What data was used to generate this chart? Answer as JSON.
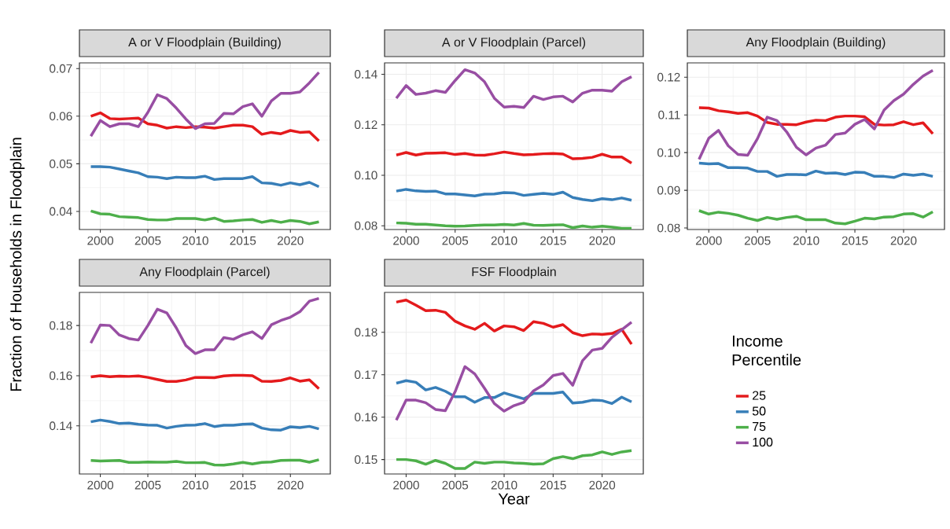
{
  "chart_data": [
    {
      "type": "line",
      "title": "A or V Floodplain (Building)",
      "x": [
        1999,
        2000,
        2001,
        2002,
        2003,
        2004,
        2005,
        2006,
        2007,
        2008,
        2009,
        2010,
        2011,
        2012,
        2013,
        2014,
        2015,
        2016,
        2017,
        2018,
        2019,
        2020,
        2021,
        2022,
        2023
      ],
      "xlim": [
        1997.8,
        2024.2
      ],
      "ylim": [
        0.0362,
        0.0712
      ],
      "xticks": [
        2000,
        2005,
        2010,
        2015,
        2020
      ],
      "yticks": [
        0.04,
        0.05,
        0.06,
        0.07
      ],
      "grid": true,
      "series": [
        {
          "color": "#e41a1c",
          "values": [
            0.06,
            0.0607,
            0.0595,
            0.0594,
            0.0595,
            0.0596,
            0.0584,
            0.0581,
            0.0575,
            0.0578,
            0.0576,
            0.0578,
            0.0577,
            0.0575,
            0.0578,
            0.0581,
            0.0581,
            0.0578,
            0.0562,
            0.0566,
            0.0563,
            0.057,
            0.0566,
            0.0567,
            0.0548
          ]
        },
        {
          "color": "#377eb8",
          "values": [
            0.0494,
            0.0494,
            0.0493,
            0.0489,
            0.0485,
            0.0481,
            0.0473,
            0.0472,
            0.0469,
            0.0472,
            0.0471,
            0.0471,
            0.0474,
            0.0467,
            0.0469,
            0.0469,
            0.0469,
            0.0473,
            0.046,
            0.0459,
            0.0455,
            0.046,
            0.0456,
            0.0461,
            0.0452
          ]
        },
        {
          "color": "#4daf4a",
          "values": [
            0.0401,
            0.0395,
            0.0394,
            0.0389,
            0.0388,
            0.0387,
            0.0383,
            0.0382,
            0.0382,
            0.0385,
            0.0385,
            0.0385,
            0.0382,
            0.0386,
            0.0379,
            0.038,
            0.0382,
            0.0383,
            0.0377,
            0.0381,
            0.0377,
            0.0381,
            0.0379,
            0.0374,
            0.0378
          ]
        },
        {
          "color": "#984ea3",
          "values": [
            0.0558,
            0.0591,
            0.0578,
            0.0584,
            0.0584,
            0.0578,
            0.0608,
            0.0645,
            0.0637,
            0.0617,
            0.0594,
            0.0574,
            0.0584,
            0.0585,
            0.0606,
            0.0605,
            0.062,
            0.0626,
            0.06,
            0.0632,
            0.0648,
            0.0648,
            0.0651,
            0.067,
            0.0692
          ]
        }
      ]
    },
    {
      "type": "line",
      "title": "A or V Floodplain (Parcel)",
      "x": [
        1999,
        2000,
        2001,
        2002,
        2003,
        2004,
        2005,
        2006,
        2007,
        2008,
        2009,
        2010,
        2011,
        2012,
        2013,
        2014,
        2015,
        2016,
        2017,
        2018,
        2019,
        2020,
        2021,
        2022,
        2023
      ],
      "xlim": [
        1997.8,
        2024.2
      ],
      "ylim": [
        0.0785,
        0.1445
      ],
      "xticks": [
        2000,
        2005,
        2010,
        2015,
        2020
      ],
      "yticks": [
        0.08,
        {
          "value": 0.1,
          "label": "0.10"
        },
        0.12,
        0.14
      ],
      "grid": true,
      "series": [
        {
          "color": "#e41a1c",
          "values": [
            0.108,
            0.109,
            0.108,
            0.1087,
            0.1088,
            0.1089,
            0.1082,
            0.1086,
            0.108,
            0.1079,
            0.1085,
            0.1092,
            0.1086,
            0.1081,
            0.1082,
            0.1085,
            0.1086,
            0.1084,
            0.1065,
            0.1067,
            0.1071,
            0.1083,
            0.1072,
            0.1072,
            0.1048
          ]
        },
        {
          "color": "#377eb8",
          "values": [
            0.0937,
            0.0944,
            0.0938,
            0.0936,
            0.0937,
            0.0926,
            0.0926,
            0.0922,
            0.0918,
            0.0925,
            0.0926,
            0.0931,
            0.093,
            0.092,
            0.0924,
            0.0928,
            0.0924,
            0.0933,
            0.0912,
            0.0904,
            0.0899,
            0.0907,
            0.0903,
            0.091,
            0.0901
          ]
        },
        {
          "color": "#4daf4a",
          "values": [
            0.0811,
            0.081,
            0.0806,
            0.0806,
            0.0803,
            0.08,
            0.0798,
            0.0799,
            0.0801,
            0.0803,
            0.0803,
            0.0805,
            0.0803,
            0.0809,
            0.0802,
            0.0801,
            0.0803,
            0.0804,
            0.0792,
            0.0799,
            0.0794,
            0.0798,
            0.0794,
            0.079,
            0.079
          ]
        },
        {
          "color": "#984ea3",
          "values": [
            0.1305,
            0.1355,
            0.132,
            0.1325,
            0.1335,
            0.1328,
            0.1375,
            0.1418,
            0.1405,
            0.137,
            0.1305,
            0.127,
            0.1273,
            0.1268,
            0.1313,
            0.13,
            0.131,
            0.1313,
            0.129,
            0.1325,
            0.1337,
            0.1337,
            0.1333,
            0.137,
            0.139
          ]
        }
      ]
    },
    {
      "type": "line",
      "title": "Any Floodplain (Building)",
      "x": [
        1999,
        2000,
        2001,
        2002,
        2003,
        2004,
        2005,
        2006,
        2007,
        2008,
        2009,
        2010,
        2011,
        2012,
        2013,
        2014,
        2015,
        2016,
        2017,
        2018,
        2019,
        2020,
        2021,
        2022,
        2023
      ],
      "xlim": [
        1997.8,
        2024.2
      ],
      "ylim": [
        0.0796,
        0.1238
      ],
      "xticks": [
        2000,
        2005,
        2010,
        2015,
        2020
      ],
      "yticks": [
        0.08,
        0.09,
        {
          "value": 0.1,
          "label": "0.10"
        },
        0.11,
        0.12
      ],
      "grid": true,
      "series": [
        {
          "color": "#e41a1c",
          "values": [
            0.1119,
            0.1118,
            0.1111,
            0.1108,
            0.1104,
            0.1106,
            0.1097,
            0.108,
            0.1075,
            0.1075,
            0.1074,
            0.1081,
            0.1086,
            0.1085,
            0.1094,
            0.1097,
            0.1097,
            0.1095,
            0.1075,
            0.1073,
            0.1074,
            0.1082,
            0.1074,
            0.1079,
            0.105
          ]
        },
        {
          "color": "#377eb8",
          "values": [
            0.0972,
            0.097,
            0.0971,
            0.096,
            0.096,
            0.0959,
            0.095,
            0.095,
            0.0937,
            0.0942,
            0.0942,
            0.0941,
            0.0951,
            0.0945,
            0.0946,
            0.0942,
            0.0948,
            0.0947,
            0.0937,
            0.0937,
            0.0934,
            0.0943,
            0.094,
            0.0943,
            0.0937
          ]
        },
        {
          "color": "#4daf4a",
          "values": [
            0.0846,
            0.0837,
            0.0842,
            0.0839,
            0.0834,
            0.0826,
            0.082,
            0.0828,
            0.0823,
            0.0828,
            0.0831,
            0.0822,
            0.0822,
            0.0822,
            0.0813,
            0.0811,
            0.0818,
            0.0826,
            0.0824,
            0.0829,
            0.083,
            0.0837,
            0.0838,
            0.0829,
            0.0843
          ]
        },
        {
          "color": "#984ea3",
          "values": [
            0.0982,
            0.1038,
            0.1059,
            0.1018,
            0.0995,
            0.0993,
            0.1037,
            0.1094,
            0.1085,
            0.1055,
            0.1014,
            0.0994,
            0.1012,
            0.102,
            0.1048,
            0.1052,
            0.1075,
            0.1088,
            0.1063,
            0.1113,
            0.1138,
            0.1155,
            0.1181,
            0.1203,
            0.1218
          ]
        }
      ]
    },
    {
      "type": "line",
      "title": "Any Floodplain (Parcel)",
      "ylabel": "Fraction of Households in Floodplain",
      "x": [
        1999,
        2000,
        2001,
        2002,
        2003,
        2004,
        2005,
        2006,
        2007,
        2008,
        2009,
        2010,
        2011,
        2012,
        2013,
        2014,
        2015,
        2016,
        2017,
        2018,
        2019,
        2020,
        2021,
        2022,
        2023
      ],
      "xlim": [
        1997.8,
        2024.2
      ],
      "ylim": [
        0.1208,
        0.1932
      ],
      "xticks": [
        2000,
        2005,
        2010,
        2015,
        2020
      ],
      "yticks": [
        0.14,
        0.16,
        0.18
      ],
      "grid": true,
      "series": [
        {
          "color": "#e41a1c",
          "values": [
            0.1595,
            0.16,
            0.1596,
            0.1598,
            0.1597,
            0.1599,
            0.1593,
            0.1585,
            0.1577,
            0.1577,
            0.1583,
            0.1593,
            0.1593,
            0.1592,
            0.1599,
            0.1601,
            0.1601,
            0.16,
            0.1578,
            0.1577,
            0.1581,
            0.1591,
            0.1578,
            0.1583,
            0.1548
          ]
        },
        {
          "color": "#377eb8",
          "values": [
            0.1416,
            0.1423,
            0.1417,
            0.1409,
            0.1411,
            0.1406,
            0.1403,
            0.1402,
            0.1391,
            0.1398,
            0.1402,
            0.1403,
            0.1409,
            0.1397,
            0.1402,
            0.1402,
            0.1406,
            0.1408,
            0.1391,
            0.1384,
            0.1383,
            0.1396,
            0.1393,
            0.1398,
            0.1388
          ]
        },
        {
          "color": "#4daf4a",
          "values": [
            0.1262,
            0.126,
            0.1261,
            0.1262,
            0.1254,
            0.1254,
            0.1256,
            0.1255,
            0.1255,
            0.1258,
            0.1253,
            0.1253,
            0.1254,
            0.1244,
            0.1243,
            0.1248,
            0.1254,
            0.1248,
            0.1254,
            0.1256,
            0.1262,
            0.1263,
            0.1263,
            0.1255,
            0.1265
          ]
        },
        {
          "color": "#984ea3",
          "values": [
            0.173,
            0.1802,
            0.18,
            0.1762,
            0.1748,
            0.1742,
            0.18,
            0.1865,
            0.185,
            0.179,
            0.172,
            0.1688,
            0.1703,
            0.1703,
            0.1752,
            0.1745,
            0.1763,
            0.1775,
            0.1748,
            0.1803,
            0.182,
            0.1833,
            0.1855,
            0.1897,
            0.1908
          ]
        }
      ]
    },
    {
      "type": "line",
      "title": "FSF Floodplain",
      "xlabel": "Year",
      "legend_title": "Income Percentile",
      "legend": "right",
      "x": [
        1999,
        2000,
        2001,
        2002,
        2003,
        2004,
        2005,
        2006,
        2007,
        2008,
        2009,
        2010,
        2011,
        2012,
        2013,
        2014,
        2015,
        2016,
        2017,
        2018,
        2019,
        2020,
        2021,
        2022,
        2023
      ],
      "xlim": [
        1997.8,
        2024.2
      ],
      "ylim": [
        0.1466,
        0.1894
      ],
      "xticks": [
        2000,
        2005,
        2010,
        2015,
        2020
      ],
      "yticks": [
        0.15,
        0.16,
        0.17,
        0.18
      ],
      "grid": true,
      "series": [
        {
          "name": "25",
          "color": "#e41a1c",
          "values": [
            0.1871,
            0.1876,
            0.1864,
            0.1851,
            0.1852,
            0.1847,
            0.1826,
            0.1815,
            0.1807,
            0.1821,
            0.1803,
            0.1815,
            0.1813,
            0.1804,
            0.1825,
            0.1821,
            0.1812,
            0.1818,
            0.1799,
            0.1792,
            0.1796,
            0.1795,
            0.1797,
            0.1807,
            0.1772
          ]
        },
        {
          "name": "50",
          "color": "#377eb8",
          "values": [
            0.168,
            0.1686,
            0.1682,
            0.1664,
            0.167,
            0.1661,
            0.1648,
            0.1648,
            0.1635,
            0.1646,
            0.1646,
            0.1657,
            0.165,
            0.1643,
            0.1656,
            0.1656,
            0.1656,
            0.1659,
            0.1633,
            0.1635,
            0.164,
            0.1639,
            0.1632,
            0.1647,
            0.1636
          ]
        },
        {
          "name": "75",
          "color": "#4daf4a",
          "values": [
            0.15,
            0.15,
            0.1497,
            0.1489,
            0.1498,
            0.1491,
            0.1479,
            0.1479,
            0.1494,
            0.1491,
            0.1494,
            0.1494,
            0.1492,
            0.1491,
            0.1489,
            0.149,
            0.1502,
            0.1507,
            0.1502,
            0.1509,
            0.1511,
            0.1518,
            0.1512,
            0.1518,
            0.1521
          ]
        },
        {
          "name": "100",
          "color": "#984ea3",
          "values": [
            0.1593,
            0.164,
            0.164,
            0.1634,
            0.1618,
            0.1615,
            0.166,
            0.1719,
            0.1702,
            0.1668,
            0.1632,
            0.1614,
            0.1627,
            0.1635,
            0.1662,
            0.1676,
            0.1698,
            0.1703,
            0.1675,
            0.1733,
            0.1758,
            0.1762,
            0.1788,
            0.1806,
            0.1824
          ]
        }
      ]
    }
  ]
}
